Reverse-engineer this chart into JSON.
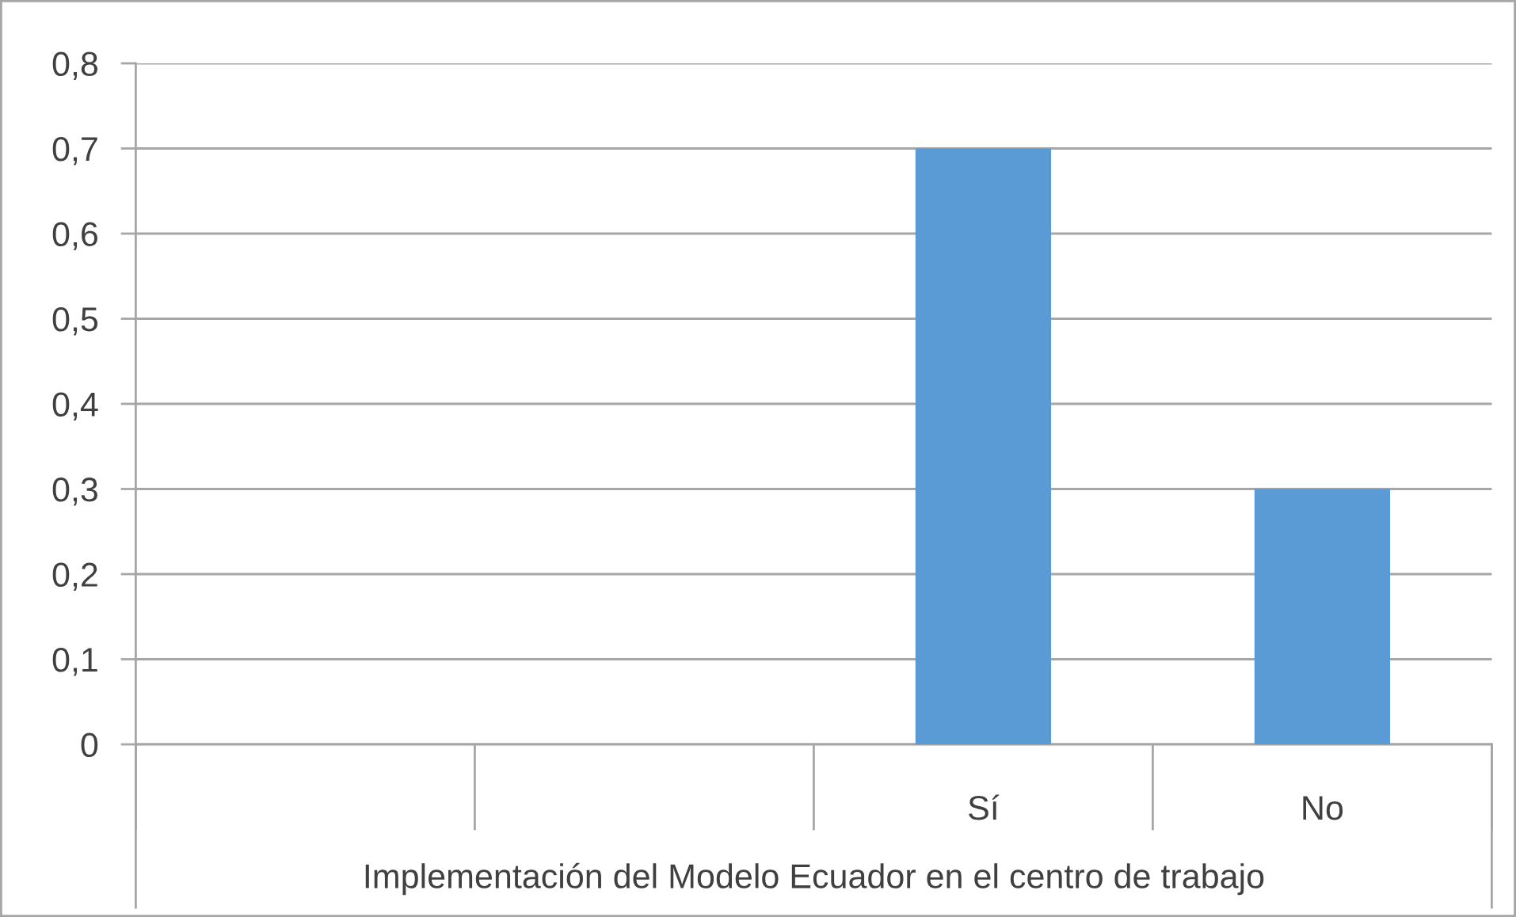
{
  "chart_data": {
    "type": "bar",
    "categories": [
      null,
      null,
      "Sí",
      "No"
    ],
    "values": [
      null,
      null,
      0.7,
      0.3
    ],
    "color": "#5b9bd5",
    "xlabel": "Implementación del Modelo Ecuador en el centro de trabajo",
    "ylim": [
      0,
      0.8
    ],
    "yticks": [
      0,
      {
        "value": 0.1,
        "label": "0,1"
      },
      {
        "value": 0.2,
        "label": "0,2"
      },
      {
        "value": 0.3,
        "label": "0,3"
      },
      {
        "value": 0.4,
        "label": "0,4"
      },
      {
        "value": 0.5,
        "label": "0,5"
      },
      {
        "value": 0.6,
        "label": "0,6"
      },
      {
        "value": 0.7,
        "label": "0,7"
      },
      {
        "value": 0.8,
        "label": "0,8"
      }
    ],
    "grid": "y"
  }
}
